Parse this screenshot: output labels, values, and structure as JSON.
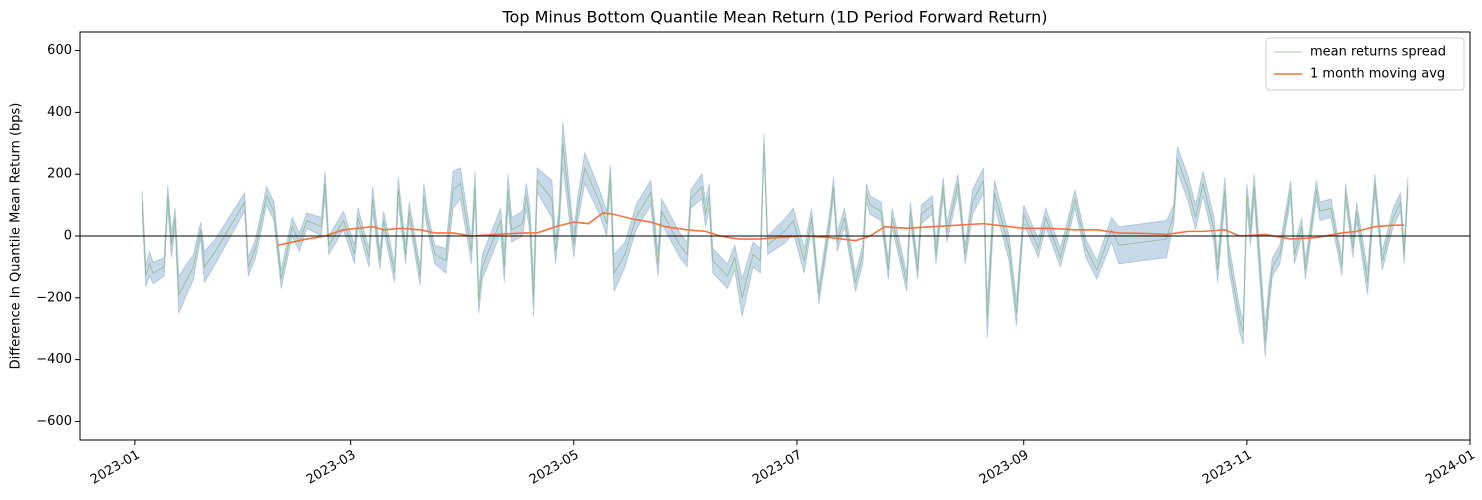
{
  "chart_data": {
    "type": "line",
    "title": "Top Minus Bottom Quantile Mean Return (1D Period Forward Return)",
    "ylabel": "Difference In Quantile Mean Return (bps)",
    "xlim": [
      "2022-12-17",
      "2024-01-01"
    ],
    "xticks": [
      {
        "value": "2023-01-01",
        "label": "2023-01"
      },
      {
        "value": "2023-03-01",
        "label": "2023-03"
      },
      {
        "value": "2023-05-01",
        "label": "2023-05"
      },
      {
        "value": "2023-07-01",
        "label": "2023-07"
      },
      {
        "value": "2023-09-01",
        "label": "2023-09"
      },
      {
        "value": "2023-11-01",
        "label": "2023-11"
      },
      {
        "value": "2024-01-01",
        "label": "2024-01"
      }
    ],
    "ylim": [
      -660,
      660
    ],
    "yticks": [
      {
        "value": -600,
        "label": "−600"
      },
      {
        "value": -400,
        "label": "−400"
      },
      {
        "value": -200,
        "label": "−200"
      },
      0,
      200,
      400,
      600
    ],
    "hline": 0,
    "legend": "upper right",
    "series": [
      {
        "name": "mean returns spread",
        "color": "#8fbc8f",
        "band_color": "#4682b4",
        "x": [
          "2023-01-03",
          "2023-01-04",
          "2023-01-05",
          "2023-01-06",
          "2023-01-09",
          "2023-01-10",
          "2023-01-11",
          "2023-01-12",
          "2023-01-13",
          "2023-01-17",
          "2023-01-19",
          "2023-01-20",
          "2023-01-23",
          "2023-01-31",
          "2023-02-01",
          "2023-02-03",
          "2023-02-06",
          "2023-02-08",
          "2023-02-10",
          "2023-02-13",
          "2023-02-15",
          "2023-02-17",
          "2023-02-21",
          "2023-02-22",
          "2023-02-23",
          "2023-02-27",
          "2023-03-01",
          "2023-03-02",
          "2023-03-03",
          "2023-03-06",
          "2023-03-07",
          "2023-03-09",
          "2023-03-10",
          "2023-03-13",
          "2023-03-14",
          "2023-03-16",
          "2023-03-17",
          "2023-03-20",
          "2023-03-21",
          "2023-03-22",
          "2023-03-24",
          "2023-03-27",
          "2023-03-29",
          "2023-03-31",
          "2023-04-03",
          "2023-04-04",
          "2023-04-05",
          "2023-04-06",
          "2023-04-11",
          "2023-04-12",
          "2023-04-13",
          "2023-04-14",
          "2023-04-17",
          "2023-04-18",
          "2023-04-19",
          "2023-04-20",
          "2023-04-21",
          "2023-04-25",
          "2023-04-26",
          "2023-04-27",
          "2023-04-28",
          "2023-05-01",
          "2023-05-02",
          "2023-05-04",
          "2023-05-08",
          "2023-05-10",
          "2023-05-11",
          "2023-05-12",
          "2023-05-15",
          "2023-05-18",
          "2023-05-22",
          "2023-05-24",
          "2023-05-25",
          "2023-05-30",
          "2023-06-01",
          "2023-06-02",
          "2023-06-05",
          "2023-06-06",
          "2023-06-07",
          "2023-06-08",
          "2023-06-12",
          "2023-06-14",
          "2023-06-16",
          "2023-06-19",
          "2023-06-21",
          "2023-06-22",
          "2023-06-23",
          "2023-06-28",
          "2023-06-30",
          "2023-07-03",
          "2023-07-05",
          "2023-07-07",
          "2023-07-10",
          "2023-07-11",
          "2023-07-12",
          "2023-07-14",
          "2023-07-17",
          "2023-07-19",
          "2023-07-20",
          "2023-07-21",
          "2023-07-24",
          "2023-07-26",
          "2023-07-27",
          "2023-07-31",
          "2023-08-01",
          "2023-08-03",
          "2023-08-04",
          "2023-08-07",
          "2023-08-08",
          "2023-08-10",
          "2023-08-11",
          "2023-08-14",
          "2023-08-15",
          "2023-08-16",
          "2023-08-18",
          "2023-08-21",
          "2023-08-22",
          "2023-08-24",
          "2023-08-28",
          "2023-08-30",
          "2023-09-01",
          "2023-09-05",
          "2023-09-07",
          "2023-09-11",
          "2023-09-13",
          "2023-09-15",
          "2023-09-18",
          "2023-09-21",
          "2023-09-25",
          "2023-09-27",
          "2023-10-10",
          "2023-10-12",
          "2023-10-13",
          "2023-10-16",
          "2023-10-18",
          "2023-10-20",
          "2023-10-23",
          "2023-10-24",
          "2023-10-26",
          "2023-10-27",
          "2023-10-30",
          "2023-10-31",
          "2023-11-01",
          "2023-11-02",
          "2023-11-03",
          "2023-11-06",
          "2023-11-07",
          "2023-11-08",
          "2023-11-10",
          "2023-11-13",
          "2023-11-14",
          "2023-11-16",
          "2023-11-17",
          "2023-11-20",
          "2023-11-21",
          "2023-11-24",
          "2023-11-27",
          "2023-11-28",
          "2023-11-30",
          "2023-12-01",
          "2023-12-04",
          "2023-12-06",
          "2023-12-08",
          "2023-12-11",
          "2023-12-13",
          "2023-12-14",
          "2023-12-15"
        ],
        "values": [
          110,
          -130,
          -90,
          -120,
          -100,
          130,
          -30,
          60,
          -190,
          -100,
          20,
          -100,
          -50,
          110,
          -100,
          -40,
          130,
          80,
          -140,
          30,
          -20,
          50,
          30,
          170,
          -30,
          50,
          -20,
          -60,
          60,
          -70,
          120,
          -80,
          50,
          -120,
          150,
          -60,
          80,
          -130,
          130,
          50,
          -60,
          -80,
          150,
          170,
          -50,
          160,
          -210,
          -100,
          50,
          -100,
          150,
          20,
          40,
          130,
          50,
          -200,
          180,
          120,
          -50,
          60,
          300,
          -30,
          80,
          220,
          110,
          40,
          190,
          -120,
          -60,
          60,
          140,
          -90,
          80,
          -30,
          -60,
          120,
          160,
          70,
          130,
          -80,
          -130,
          -70,
          -200,
          -60,
          -80,
          300,
          -30,
          20,
          50,
          -80,
          60,
          -190,
          50,
          160,
          -20,
          60,
          -150,
          -60,
          140,
          100,
          80,
          -110,
          60,
          -150,
          80,
          -110,
          70,
          100,
          -60,
          160,
          10,
          170,
          60,
          -60,
          110,
          180,
          -270,
          140,
          -40,
          -250,
          70,
          -40,
          60,
          -70,
          20,
          120,
          -40,
          -110,
          20,
          -30,
          -10,
          70,
          250,
          150,
          60,
          170,
          20,
          -110,
          150,
          -60,
          -270,
          -310,
          130,
          10,
          160,
          -340,
          -200,
          -100,
          -60,
          150,
          -60,
          30,
          -110,
          150,
          80,
          90,
          -100,
          140,
          -40,
          80,
          -150,
          170,
          -80,
          60,
          110,
          -60,
          160
        ],
        "errors": [
          35,
          35,
          40,
          35,
          30,
          35,
          40,
          30,
          60,
          40,
          25,
          50,
          40,
          30,
          30,
          30,
          30,
          30,
          30,
          30,
          30,
          25,
          30,
          40,
          30,
          30,
          30,
          30,
          30,
          30,
          40,
          30,
          30,
          30,
          40,
          30,
          30,
          30,
          40,
          30,
          30,
          40,
          60,
          50,
          40,
          50,
          40,
          40,
          40,
          50,
          50,
          40,
          40,
          40,
          40,
          60,
          40,
          60,
          40,
          40,
          70,
          40,
          40,
          50,
          40,
          40,
          40,
          60,
          40,
          40,
          40,
          40,
          40,
          40,
          40,
          30,
          40,
          40,
          40,
          40,
          40,
          40,
          60,
          40,
          40,
          30,
          30,
          40,
          40,
          40,
          30,
          30,
          30,
          30,
          30,
          30,
          30,
          30,
          30,
          30,
          30,
          30,
          30,
          30,
          30,
          30,
          30,
          30,
          30,
          30,
          30,
          30,
          30,
          30,
          40,
          40,
          60,
          40,
          40,
          40,
          30,
          30,
          30,
          30,
          30,
          30,
          30,
          30,
          40,
          60,
          60,
          30,
          40,
          40,
          40,
          40,
          40,
          40,
          40,
          40,
          40,
          40,
          40,
          40,
          40,
          50,
          40,
          30,
          30,
          30,
          30,
          30,
          30,
          30,
          30,
          30,
          30,
          30,
          30,
          30,
          40,
          30,
          30,
          30,
          30,
          30,
          30
        ]
      },
      {
        "name": "1 month moving avg",
        "color": "#f4733f",
        "x": [
          "2023-02-09",
          "2023-02-13",
          "2023-02-17",
          "2023-02-22",
          "2023-02-27",
          "2023-03-03",
          "2023-03-07",
          "2023-03-10",
          "2023-03-15",
          "2023-03-20",
          "2023-03-24",
          "2023-03-29",
          "2023-04-03",
          "2023-04-10",
          "2023-04-17",
          "2023-04-21",
          "2023-04-26",
          "2023-05-01",
          "2023-05-05",
          "2023-05-09",
          "2023-05-12",
          "2023-05-17",
          "2023-05-22",
          "2023-05-26",
          "2023-06-01",
          "2023-06-06",
          "2023-06-10",
          "2023-06-15",
          "2023-06-20",
          "2023-06-26",
          "2023-07-03",
          "2023-07-10",
          "2023-07-17",
          "2023-07-21",
          "2023-07-25",
          "2023-07-31",
          "2023-08-07",
          "2023-08-14",
          "2023-08-21",
          "2023-08-28",
          "2023-09-01",
          "2023-09-08",
          "2023-09-15",
          "2023-09-21",
          "2023-09-27",
          "2023-10-05",
          "2023-10-10",
          "2023-10-16",
          "2023-10-20",
          "2023-10-26",
          "2023-10-30",
          "2023-11-06",
          "2023-11-13",
          "2023-11-20",
          "2023-11-27",
          "2023-12-01",
          "2023-12-06",
          "2023-12-11",
          "2023-12-14"
        ],
        "values": [
          -30,
          -20,
          -10,
          0,
          20,
          25,
          30,
          20,
          25,
          20,
          10,
          10,
          0,
          5,
          10,
          10,
          30,
          45,
          40,
          75,
          70,
          55,
          45,
          30,
          20,
          15,
          0,
          -10,
          -10,
          -5,
          0,
          -5,
          -15,
          0,
          30,
          25,
          30,
          35,
          40,
          30,
          25,
          25,
          20,
          20,
          10,
          8,
          5,
          15,
          15,
          20,
          0,
          5,
          -10,
          -5,
          10,
          15,
          30,
          35,
          35
        ]
      }
    ]
  }
}
